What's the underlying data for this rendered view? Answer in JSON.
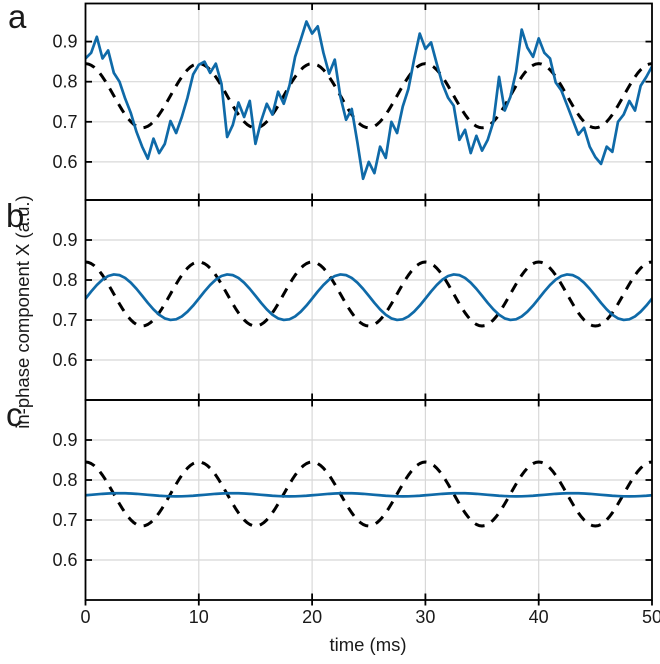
{
  "figure": {
    "background": "#ffffff"
  },
  "colors": {
    "signal": "#0f6aa8",
    "reference": "#000000",
    "grid": "#d8d8d8",
    "axis": "#000000",
    "text": "#1a1a1a"
  },
  "chart_data": {
    "type": "line",
    "title": "",
    "xlabel": "time (ms)",
    "ylabel": "in-phase component X (a.u.)",
    "xlim": [
      0,
      50
    ],
    "xticks": [
      0,
      10,
      20,
      30,
      40,
      50
    ],
    "ylim": [
      0.5,
      1.0
    ],
    "yticks": [
      0.6,
      0.7,
      0.8,
      0.9
    ],
    "grid": true,
    "legend": "none",
    "reference_series": {
      "name": "dashed-reference",
      "line_style": "dashed",
      "color_key": "reference",
      "periodic": {
        "period_ms": 10,
        "dt_ms": 0.25,
        "values": [
          0.845,
          0.844,
          0.8411,
          0.8363,
          0.8297,
          0.8216,
          0.812,
          0.8013,
          0.7897,
          0.7775,
          0.765,
          0.7525,
          0.7403,
          0.7287,
          0.718,
          0.7084,
          0.7003,
          0.6937,
          0.6889,
          0.686,
          0.685,
          0.686,
          0.6889,
          0.6937,
          0.7003,
          0.7084,
          0.718,
          0.7287,
          0.7403,
          0.7525,
          0.765,
          0.7775,
          0.7897,
          0.8013,
          0.812,
          0.8216,
          0.8297,
          0.8363,
          0.8411,
          0.844
        ]
      }
    },
    "panels": [
      {
        "label": "a",
        "signal": {
          "name": "solid-signal",
          "line_style": "solid",
          "color_key": "signal",
          "sampled": {
            "t0": 0,
            "dt_ms": 0.5,
            "values": [
              0.858,
              0.872,
              0.912,
              0.858,
              0.878,
              0.822,
              0.8,
              0.758,
              0.722,
              0.675,
              0.638,
              0.608,
              0.658,
              0.622,
              0.645,
              0.702,
              0.672,
              0.712,
              0.76,
              0.818,
              0.842,
              0.85,
              0.822,
              0.845,
              0.795,
              0.662,
              0.692,
              0.748,
              0.712,
              0.752,
              0.645,
              0.702,
              0.745,
              0.718,
              0.775,
              0.745,
              0.79,
              0.862,
              0.905,
              0.95,
              0.92,
              0.938,
              0.872,
              0.82,
              0.855,
              0.762,
              0.705,
              0.732,
              0.648,
              0.558,
              0.6,
              0.572,
              0.638,
              0.61,
              0.7,
              0.672,
              0.738,
              0.782,
              0.855,
              0.92,
              0.882,
              0.898,
              0.845,
              0.795,
              0.76,
              0.74,
              0.655,
              0.68,
              0.622,
              0.665,
              0.628,
              0.655,
              0.7,
              0.812,
              0.728,
              0.762,
              0.825,
              0.93,
              0.885,
              0.862,
              0.908,
              0.872,
              0.858,
              0.798,
              0.778,
              0.742,
              0.705,
              0.668,
              0.685,
              0.638,
              0.612,
              0.595,
              0.638,
              0.625,
              0.7,
              0.718,
              0.752,
              0.728,
              0.79,
              0.812,
              0.838
            ]
          }
        }
      },
      {
        "label": "b",
        "signal": {
          "name": "solid-signal",
          "line_style": "solid",
          "color_key": "signal",
          "periodic": {
            "period_ms": 10,
            "dt_ms": 0.5,
            "values": [
              0.7534,
              0.7712,
              0.7875,
              0.8009,
              0.81,
              0.8139,
              0.8122,
              0.8051,
              0.7933,
              0.778,
              0.7606,
              0.7428,
              0.7265,
              0.7131,
              0.704,
              0.7001,
              0.7018,
              0.7089,
              0.7207,
              0.736
            ]
          }
        }
      },
      {
        "label": "c",
        "signal": {
          "name": "solid-signal",
          "line_style": "solid",
          "color_key": "signal",
          "periodic": {
            "period_ms": 10,
            "dt_ms": 0.5,
            "values": [
              0.7618,
              0.763,
              0.7642,
              0.7654,
              0.7662,
              0.7668,
              0.767,
              0.7668,
              0.7662,
              0.7654,
              0.7642,
              0.763,
              0.7618,
              0.7606,
              0.7598,
              0.7592,
              0.759,
              0.7592,
              0.7598,
              0.7606
            ]
          }
        }
      }
    ]
  }
}
